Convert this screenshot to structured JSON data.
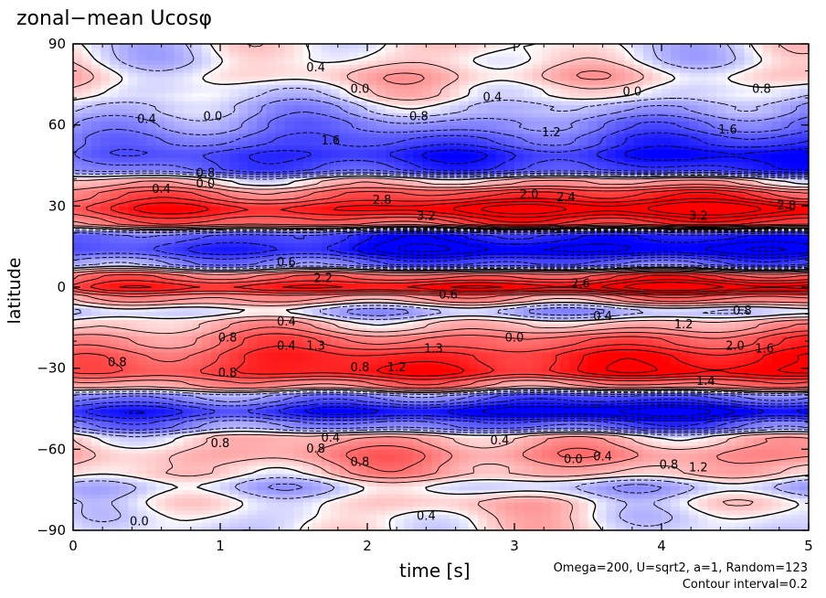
{
  "chart_data": {
    "type": "heatmap",
    "title": "zonal−mean Ucosφ",
    "xlabel": "time [s]",
    "ylabel": "latitude",
    "xlim": [
      0,
      5
    ],
    "ylim": [
      -90,
      90
    ],
    "xticks": [
      "0",
      "1",
      "2",
      "3",
      "4",
      "5"
    ],
    "yticks": [
      "−90",
      "−60",
      "−30",
      "0",
      "30",
      "60",
      "90"
    ],
    "xtick_values": [
      0,
      1,
      2,
      3,
      4,
      5
    ],
    "ytick_values": [
      -90,
      -60,
      -30,
      0,
      30,
      60,
      90
    ],
    "colormap": {
      "negative": "#0000ff",
      "zero": "#ffffff",
      "positive": "#ff0000"
    },
    "contour_interval": 0.2,
    "latitude_bands": [
      {
        "lat": 85,
        "value": 0.0
      },
      {
        "lat": 78,
        "value": 0.4
      },
      {
        "lat": 72,
        "value": 0.0
      },
      {
        "lat": 66,
        "value": -0.6
      },
      {
        "lat": 60,
        "value": -1.2
      },
      {
        "lat": 54,
        "value": -1.8
      },
      {
        "lat": 49,
        "value": -2.4
      },
      {
        "lat": 44,
        "value": -2.0
      },
      {
        "lat": 39,
        "value": 0.6
      },
      {
        "lat": 34,
        "value": 2.0
      },
      {
        "lat": 29,
        "value": 3.2
      },
      {
        "lat": 24,
        "value": 2.0
      },
      {
        "lat": 19,
        "value": -2.4
      },
      {
        "lat": 14,
        "value": -3.0
      },
      {
        "lat": 9,
        "value": -1.6
      },
      {
        "lat": 4,
        "value": 1.8
      },
      {
        "lat": 0,
        "value": 3.0
      },
      {
        "lat": -4,
        "value": 1.0
      },
      {
        "lat": -9,
        "value": -0.6
      },
      {
        "lat": -14,
        "value": 0.6
      },
      {
        "lat": -20,
        "value": 1.6
      },
      {
        "lat": -26,
        "value": 2.4
      },
      {
        "lat": -31,
        "value": 2.6
      },
      {
        "lat": -36,
        "value": 1.2
      },
      {
        "lat": -41,
        "value": -1.6
      },
      {
        "lat": -46,
        "value": -3.0
      },
      {
        "lat": -51,
        "value": -1.4
      },
      {
        "lat": -56,
        "value": 0.6
      },
      {
        "lat": -62,
        "value": 1.0
      },
      {
        "lat": -68,
        "value": 0.6
      },
      {
        "lat": -74,
        "value": -0.4
      },
      {
        "lat": -80,
        "value": 0.2
      },
      {
        "lat": -86,
        "value": 0.0
      }
    ],
    "contour_labels": [
      {
        "t": 1.65,
        "lat": 81,
        "text": "0.4"
      },
      {
        "t": 1.95,
        "lat": 73,
        "text": "0.0"
      },
      {
        "t": 2.85,
        "lat": 70,
        "text": "0.4"
      },
      {
        "t": 3.8,
        "lat": 72,
        "text": "0.0"
      },
      {
        "t": 4.68,
        "lat": 73,
        "text": "0.8"
      },
      {
        "t": 0.5,
        "lat": 62,
        "text": "0.4"
      },
      {
        "t": 0.95,
        "lat": 63,
        "text": "0.0"
      },
      {
        "t": 2.35,
        "lat": 63,
        "text": "0.8"
      },
      {
        "t": 3.25,
        "lat": 57,
        "text": "1.2"
      },
      {
        "t": 4.45,
        "lat": 58,
        "text": "1.6"
      },
      {
        "t": 1.75,
        "lat": 54,
        "text": "1.6"
      },
      {
        "t": 0.9,
        "lat": 42,
        "text": "0.8"
      },
      {
        "t": 0.9,
        "lat": 38,
        "text": "0.0"
      },
      {
        "t": 0.6,
        "lat": 36,
        "text": "0.4"
      },
      {
        "t": 2.1,
        "lat": 32,
        "text": "2.8"
      },
      {
        "t": 3.1,
        "lat": 34,
        "text": "2.0"
      },
      {
        "t": 3.35,
        "lat": 33,
        "text": "2.4"
      },
      {
        "t": 4.85,
        "lat": 30,
        "text": "2.8"
      },
      {
        "t": 4.25,
        "lat": 26,
        "text": "3.2"
      },
      {
        "t": 2.4,
        "lat": 26,
        "text": "3.2"
      },
      {
        "t": 1.45,
        "lat": 9,
        "text": "0.6"
      },
      {
        "t": 1.7,
        "lat": 3,
        "text": "2.2"
      },
      {
        "t": 3.45,
        "lat": 1,
        "text": "2.6"
      },
      {
        "t": 2.55,
        "lat": -3,
        "text": "0.6"
      },
      {
        "t": 4.55,
        "lat": -9,
        "text": "0.8"
      },
      {
        "t": 4.15,
        "lat": -14,
        "text": "1.2"
      },
      {
        "t": 3.6,
        "lat": -11,
        "text": "0.4"
      },
      {
        "t": 1.45,
        "lat": -13,
        "text": "0.4"
      },
      {
        "t": 1.05,
        "lat": -19,
        "text": "0.8"
      },
      {
        "t": 1.45,
        "lat": -22,
        "text": "0.4"
      },
      {
        "t": 1.65,
        "lat": -22,
        "text": "1.3"
      },
      {
        "t": 2.45,
        "lat": -23,
        "text": "1.3"
      },
      {
        "t": 3.0,
        "lat": -19,
        "text": "0.0"
      },
      {
        "t": 4.5,
        "lat": -22,
        "text": "2.0"
      },
      {
        "t": 4.7,
        "lat": -23,
        "text": "1.6"
      },
      {
        "t": 0.3,
        "lat": -28,
        "text": "0.8"
      },
      {
        "t": 1.95,
        "lat": -30,
        "text": "0.8"
      },
      {
        "t": 2.2,
        "lat": -30,
        "text": "1.2"
      },
      {
        "t": 1.05,
        "lat": -32,
        "text": "0.8"
      },
      {
        "t": 1.75,
        "lat": -56,
        "text": "0.4"
      },
      {
        "t": 1.0,
        "lat": -58,
        "text": "0.8"
      },
      {
        "t": 1.65,
        "lat": -60,
        "text": "0.8"
      },
      {
        "t": 1.95,
        "lat": -65,
        "text": "0.8"
      },
      {
        "t": 2.9,
        "lat": -57,
        "text": "0.4"
      },
      {
        "t": 3.4,
        "lat": -64,
        "text": "0.0"
      },
      {
        "t": 3.6,
        "lat": -63,
        "text": "0.4"
      },
      {
        "t": 4.05,
        "lat": -66,
        "text": "0.8"
      },
      {
        "t": 4.25,
        "lat": -67,
        "text": "1.2"
      },
      {
        "t": 0.45,
        "lat": -87,
        "text": "0.0"
      },
      {
        "t": 2.4,
        "lat": -85,
        "text": "0.4"
      },
      {
        "t": 4.3,
        "lat": -35,
        "text": "1.4"
      }
    ]
  },
  "annotations": {
    "params": "Omega=200, U=sqrt2, a=1, Random=123",
    "contour": "Contour interval=0.2"
  }
}
